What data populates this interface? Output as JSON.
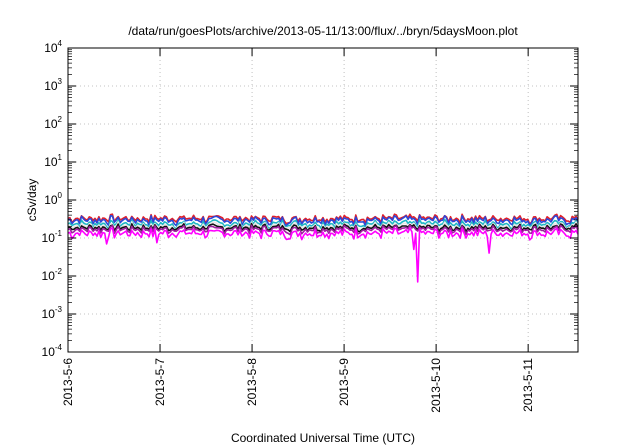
{
  "chart_data": {
    "type": "line",
    "title": "/data/run/goesPlots/archive/2013-05-11/13:00/flux/../bryn/5daysMoon.plot",
    "xlabel": "Coordinated Universal Time (UTC)",
    "ylabel": "cSv/day",
    "y_scale": "log",
    "ylim": [
      0.0001,
      10000
    ],
    "x_range": [
      "2013-05-06",
      "2013-05-11 13:00"
    ],
    "x_tick_labels": [
      "2013-5-6",
      "2013-5-7",
      "2013-5-8",
      "2013-5-9",
      "2013-5-10",
      "2013-5-11"
    ],
    "y_tick_labels": [
      {
        "value": 0.0001,
        "base": "10",
        "exp": "-4"
      },
      {
        "value": 0.001,
        "base": "10",
        "exp": "-3"
      },
      {
        "value": 0.01,
        "base": "10",
        "exp": "-2"
      },
      {
        "value": 0.1,
        "base": "10",
        "exp": "-1"
      },
      {
        "value": 1,
        "base": "10",
        "exp": "0"
      },
      {
        "value": 10,
        "base": "10",
        "exp": "1"
      },
      {
        "value": 100,
        "base": "10",
        "exp": "2"
      },
      {
        "value": 1000,
        "base": "10",
        "exp": "3"
      },
      {
        "value": 10000,
        "base": "10",
        "exp": "4"
      }
    ],
    "grid": true,
    "series": [
      {
        "color": "#e0202a",
        "base": 0.33,
        "amp": 0.1
      },
      {
        "color": "#2b46d8",
        "base": 0.3,
        "amp": 0.1
      },
      {
        "color": "#1fb7c4",
        "base": 0.24,
        "amp": 0.07
      },
      {
        "color": "#e8e8e8",
        "base": 0.21,
        "amp": 0.06
      },
      {
        "color": "#111111",
        "base": 0.19,
        "amp": 0.05
      },
      {
        "color": "#a020a0",
        "base": 0.17,
        "amp": 0.05
      },
      {
        "color": "#ff00ff",
        "base": 0.135,
        "amp": 0.05
      }
    ],
    "dips": [
      {
        "x": "2013-05-06 10:00",
        "y": 0.07
      },
      {
        "x": "2013-05-06 23:00",
        "y": 0.075
      },
      {
        "x": "2013-05-09 18:00",
        "y": 0.05
      },
      {
        "x": "2013-05-09 19:00",
        "y": 0.007
      },
      {
        "x": "2013-05-10 14:00",
        "y": 0.04
      }
    ]
  }
}
